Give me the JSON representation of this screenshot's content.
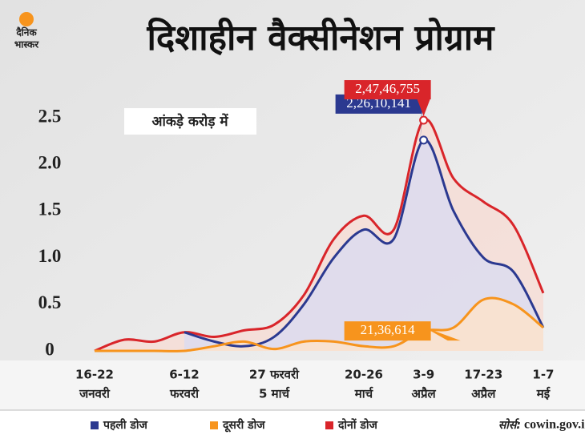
{
  "brand": [
    "दैनिक",
    "भास्कर"
  ],
  "chart_data": {
    "type": "line",
    "title": "दिशाहीन वैक्सीनेशन प्रोग्राम",
    "subtitle": "आंकड़े करोड़ में",
    "source_label": "सोर्स:",
    "source": "cowin.gov.in",
    "categories": [
      [
        "16-22",
        "जनवरी"
      ],
      null,
      null,
      [
        "6-12",
        "फरवरी"
      ],
      null,
      null,
      [
        "27 फरवरी",
        "5 मार्च"
      ],
      null,
      null,
      [
        "20-26",
        "मार्च"
      ],
      null,
      [
        "3-9",
        "अप्रैल"
      ],
      null,
      [
        "17-23",
        "अप्रैल"
      ],
      null,
      [
        "1-7",
        "मई"
      ]
    ],
    "series": [
      {
        "name": "पहली डोज",
        "color": "#2b3990",
        "fill": "#dcdcee",
        "values": [
          null,
          null,
          null,
          0.2,
          0.1,
          0.05,
          0.15,
          0.5,
          1.0,
          1.3,
          1.2,
          2.2610141,
          1.5,
          1.0,
          0.85,
          0.25
        ],
        "value_labels": [
          null,
          null,
          null,
          null,
          null,
          null,
          null,
          null,
          null,
          null,
          null,
          "2,26,10,141",
          null,
          null,
          null,
          null
        ]
      },
      {
        "name": "दूसरी डोज",
        "color": "#f7941d",
        "fill": "#fbe3cc",
        "values": [
          0,
          0,
          0,
          0,
          0.05,
          0.1,
          0.02,
          0.1,
          0.1,
          0.05,
          0.05,
          0.2136614,
          0.25,
          0.55,
          0.5,
          0.25
        ],
        "value_labels": [
          null,
          null,
          null,
          null,
          null,
          null,
          null,
          null,
          null,
          null,
          null,
          "21,36,614",
          null,
          null,
          null,
          null
        ]
      },
      {
        "name": "दोनों डोज",
        "color": "#d9252a",
        "fill": "#f6ddd6",
        "values": [
          0,
          0.12,
          0.1,
          0.2,
          0.15,
          0.22,
          0.28,
          0.6,
          1.2,
          1.45,
          1.3,
          2.4746755,
          1.85,
          1.6,
          1.35,
          0.62
        ],
        "value_labels": [
          null,
          null,
          null,
          null,
          null,
          null,
          null,
          null,
          null,
          null,
          null,
          "2,47,46,755",
          null,
          null,
          null,
          null
        ]
      }
    ],
    "ylim": [
      0,
      2.75
    ],
    "yticks": [
      0,
      0.5,
      {
        "value": 1,
        "label": "1.0"
      },
      1.5,
      {
        "value": 2,
        "label": "2.0"
      },
      2.5
    ]
  }
}
